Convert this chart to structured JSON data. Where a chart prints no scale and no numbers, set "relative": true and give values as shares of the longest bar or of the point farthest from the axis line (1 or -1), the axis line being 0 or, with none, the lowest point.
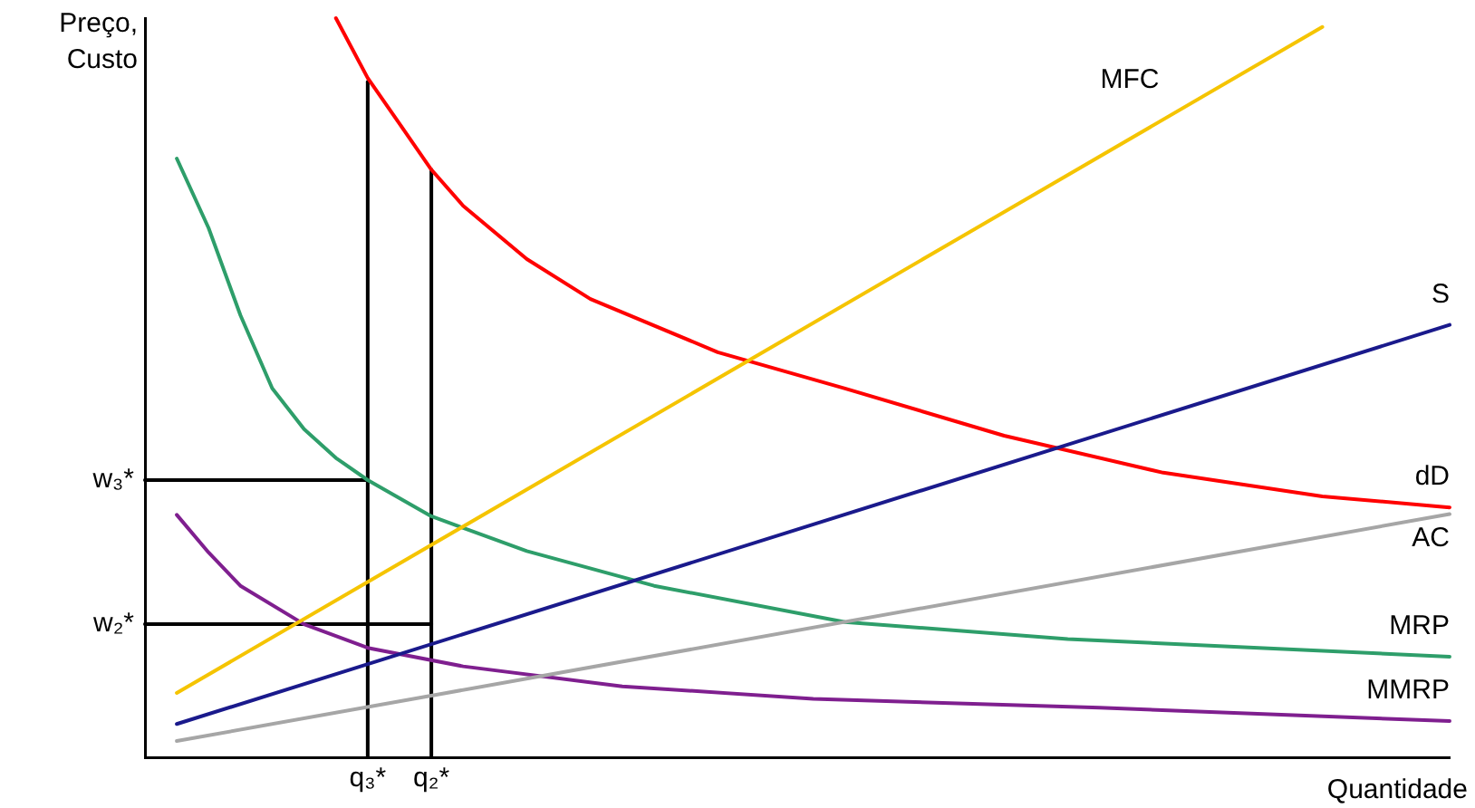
{
  "chart_data": {
    "type": "line",
    "relative": true,
    "xlabel": "Quantidade",
    "ylabel": "Preço,\nCusto",
    "grid": false,
    "legend": false,
    "marker": "none",
    "line_style": "solid",
    "categories": [
      null,
      null,
      null,
      null,
      null,
      null,
      null,
      "q₃*",
      null,
      "q₂*",
      null,
      null,
      null,
      null,
      null,
      null,
      null,
      null,
      null,
      null,
      null,
      null,
      null,
      null,
      null,
      null,
      null,
      null,
      null,
      null,
      null,
      null,
      null,
      null,
      null,
      null,
      null,
      null,
      null,
      null,
      null,
      null
    ],
    "series": [
      {
        "name": "MFC",
        "color": "#f5c400",
        "values": [
          null,
          0.087,
          null,
          null,
          null,
          null,
          null,
          null,
          null,
          null,
          null,
          null,
          null,
          null,
          null,
          null,
          null,
          null,
          null,
          null,
          null,
          null,
          null,
          null,
          null,
          null,
          null,
          null,
          null,
          null,
          null,
          null,
          null,
          null,
          null,
          null,
          null,
          0.988,
          null,
          null,
          null,
          null
        ]
      },
      {
        "name": "S",
        "color": "#1a1a8c",
        "values": [
          null,
          0.045,
          null,
          null,
          null,
          null,
          null,
          null,
          null,
          null,
          null,
          null,
          null,
          null,
          null,
          null,
          null,
          null,
          null,
          null,
          null,
          null,
          null,
          null,
          null,
          null,
          null,
          null,
          null,
          null,
          null,
          null,
          null,
          null,
          null,
          null,
          null,
          null,
          null,
          null,
          null,
          0.585
        ]
      },
      {
        "name": "dD",
        "color": "#ff0000",
        "values": [
          null,
          null,
          null,
          null,
          null,
          null,
          1.0,
          0.919,
          0.857,
          0.795,
          0.746,
          null,
          0.674,
          null,
          0.62,
          null,
          null,
          null,
          0.548,
          null,
          null,
          null,
          0.499,
          null,
          null,
          null,
          null,
          0.435,
          null,
          null,
          null,
          null,
          0.385,
          null,
          null,
          null,
          null,
          0.353,
          null,
          null,
          null,
          0.338
        ]
      },
      {
        "name": "AC",
        "color": "#a6a6a6",
        "values": [
          null,
          0.022,
          null,
          null,
          null,
          null,
          null,
          null,
          null,
          null,
          null,
          null,
          null,
          null,
          null,
          null,
          null,
          null,
          null,
          null,
          null,
          null,
          null,
          null,
          null,
          null,
          null,
          null,
          null,
          null,
          null,
          null,
          null,
          null,
          null,
          null,
          null,
          null,
          null,
          null,
          null,
          0.329
        ]
      },
      {
        "name": "MRP",
        "color": "#2e9e6a",
        "values": [
          null,
          0.81,
          0.716,
          0.598,
          0.499,
          0.444,
          0.405,
          0.375,
          null,
          0.326,
          null,
          null,
          0.279,
          null,
          null,
          null,
          0.232,
          null,
          null,
          null,
          null,
          null,
          0.183,
          null,
          null,
          null,
          null,
          null,
          null,
          0.16,
          null,
          null,
          null,
          null,
          null,
          0.148,
          null,
          null,
          null,
          null,
          null,
          0.136
        ]
      },
      {
        "name": "MMRP",
        "color": "#7f1f8f",
        "values": [
          null,
          0.328,
          0.277,
          0.232,
          null,
          0.18,
          null,
          0.148,
          null,
          null,
          0.123,
          null,
          null,
          null,
          null,
          0.096,
          null,
          null,
          null,
          null,
          null,
          0.079,
          null,
          null,
          null,
          null,
          null,
          null,
          null,
          null,
          0.067,
          null,
          null,
          null,
          null,
          null,
          null,
          null,
          null,
          null,
          null,
          0.049
        ]
      },
      {
        "name": "w₃*",
        "color": "#000000",
        "values": [
          0.375,
          null,
          null,
          null,
          null,
          null,
          null,
          0.375,
          null,
          null,
          null,
          null,
          null,
          null,
          null,
          null,
          null,
          null,
          null,
          null,
          null,
          null,
          null,
          null,
          null,
          null,
          null,
          null,
          null,
          null,
          null,
          null,
          null,
          null,
          null,
          null,
          null,
          null,
          null,
          null,
          null,
          null
        ]
      },
      {
        "color": "#000000",
        "x": [
          "q₃*",
          "q₃*"
        ],
        "values": [
          0,
          0.914
        ]
      },
      {
        "name": "w₂*",
        "color": "#000000",
        "values": [
          0.18,
          null,
          null,
          null,
          null,
          null,
          null,
          null,
          null,
          0.18,
          null,
          null,
          null,
          null,
          null,
          null,
          null,
          null,
          null,
          null,
          null,
          null,
          null,
          null,
          null,
          null,
          null,
          null,
          null,
          null,
          null,
          null,
          null,
          null,
          null,
          null,
          null,
          null,
          null,
          null,
          null,
          null
        ]
      },
      {
        "color": "#000000",
        "x": [
          "q₂*",
          "q₂*"
        ],
        "values": [
          0,
          0.795
        ]
      }
    ]
  }
}
